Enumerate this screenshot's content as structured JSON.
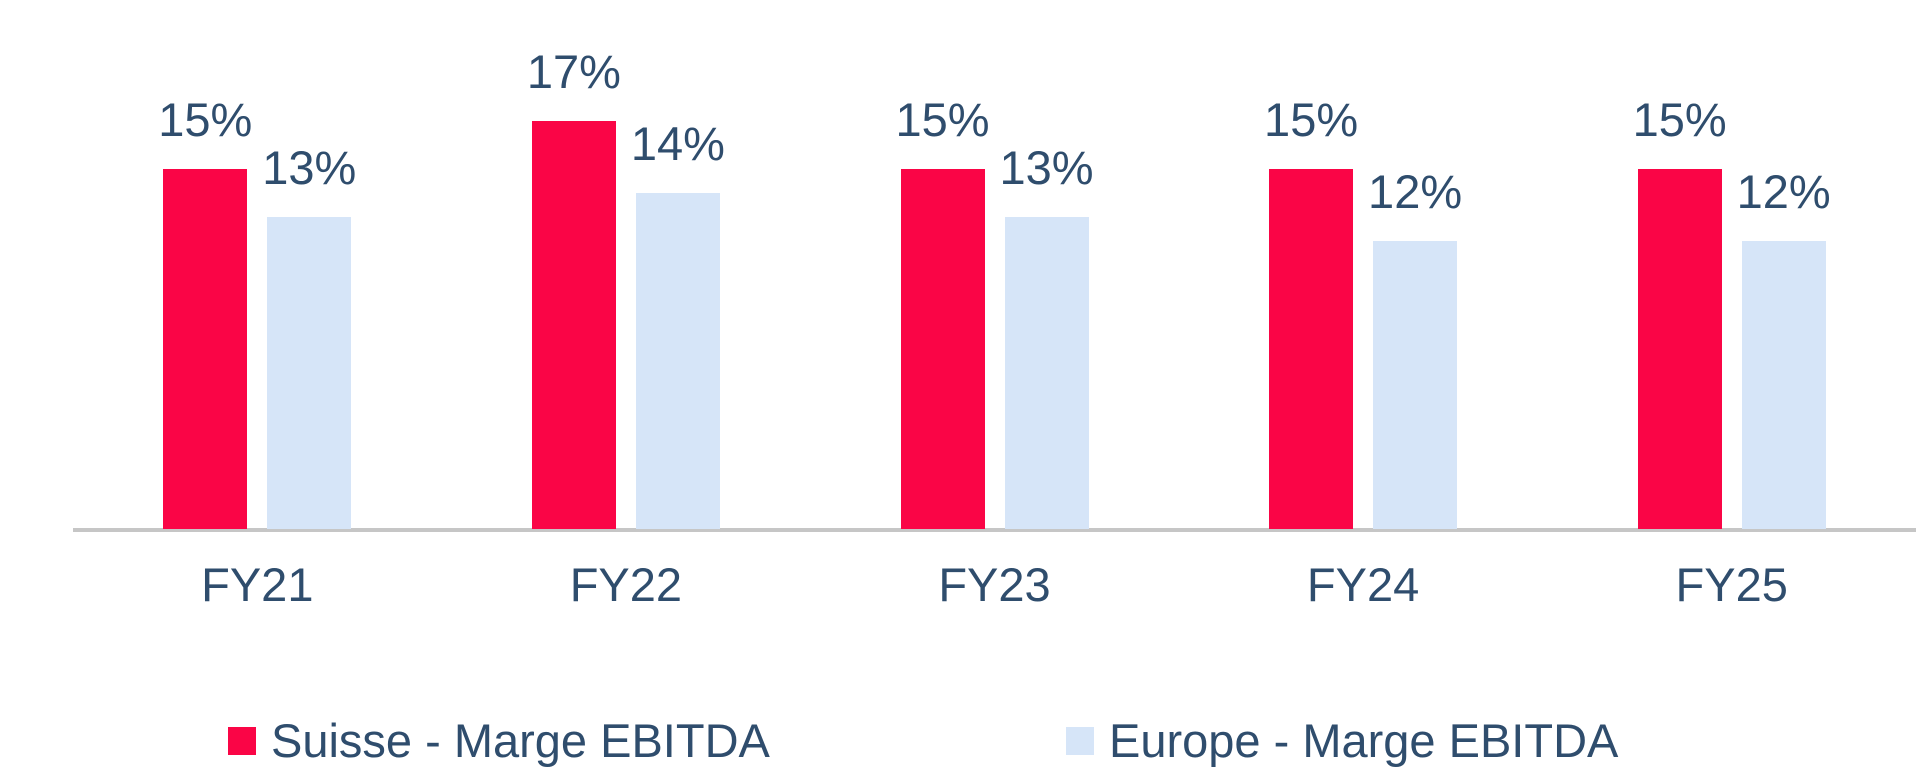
{
  "chart_data": {
    "type": "bar",
    "title": "",
    "categories": [
      "FY21",
      "FY22",
      "FY23",
      "FY24",
      "FY25"
    ],
    "series": [
      {
        "name": "Suisse - Marge EBITDA",
        "color": "#FA0546",
        "values": [
          15,
          17,
          15,
          15,
          15
        ],
        "labels": [
          "15%",
          "17%",
          "15%",
          "15%",
          "15%"
        ]
      },
      {
        "name": "Europe - Marge EBITDA",
        "color": "#D6E5F8",
        "values": [
          13,
          14,
          13,
          12,
          12
        ],
        "labels": [
          "13%",
          "14%",
          "13%",
          "12%",
          "12%"
        ]
      }
    ],
    "value_format": "percent",
    "ylim": [
      0,
      18
    ],
    "y_axis_visible": false,
    "grid": false,
    "data_labels": "outside-end",
    "legend_position": "bottom",
    "colors": {
      "label_text": "#2F4D6D",
      "axis_line": "#C6C6C6",
      "background": "#FFFFFF"
    }
  }
}
